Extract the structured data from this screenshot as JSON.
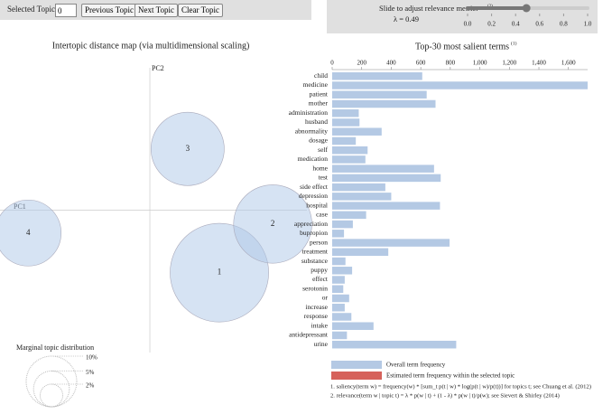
{
  "controls": {
    "selected_label": "Selected Topic:",
    "selected_value": "0",
    "buttons": [
      "Previous Topic",
      "Next Topic",
      "Clear Topic"
    ],
    "slider_label": "Slide to adjust relevance metric:",
    "slider_note": "(2)",
    "lambda_label": "λ = 0.49",
    "lambda": 0.49,
    "slider_lim": [
      0,
      1
    ],
    "slider_ticks": [
      {
        "value": 0,
        "label": "0.0"
      },
      0.2,
      0.4,
      0.6,
      0.8,
      {
        "value": 1,
        "label": "1.0"
      }
    ]
  },
  "chart_data": [
    {
      "type": "bubble",
      "title": "Intertopic distance map (via multidimensional scaling)",
      "xlabel": "PC1",
      "ylabel": "PC2",
      "categories": [
        "1",
        "2",
        "3",
        "4"
      ],
      "x": [
        0.116,
        0.205,
        0.063,
        -0.203
      ],
      "y": [
        -0.104,
        -0.023,
        0.102,
        -0.038
      ],
      "sizes": [
        38,
        24,
        21,
        17
      ],
      "xlim": [
        -0.25,
        0.262
      ],
      "ylim": [
        -0.237,
        0.237
      ],
      "color": "#aec7e8",
      "size_legend": {
        "title": "Marginal topic distribution",
        "values": [
          2,
          5,
          10
        ],
        "value_labels": [
          "2%",
          "5%",
          "10%"
        ]
      }
    },
    {
      "type": "bar",
      "orientation": "horizontal",
      "title": "Top-30 most salient terms",
      "title_note": "(1)",
      "categories": [
        "child",
        "medicine",
        "patient",
        "mother",
        "administration",
        "husband",
        "abnormality",
        "dosage",
        "self",
        "medication",
        "home",
        "test",
        "side effect",
        "depression",
        "hospital",
        "case",
        "appreciation",
        "bupropion",
        "person",
        "treatment",
        "substance",
        "puppy",
        "effect",
        "serotonin",
        "or",
        "increase",
        "response",
        "intake",
        "antidepressant",
        "urine"
      ],
      "series": [
        {
          "name": "Overall term frequency",
          "color": "#b4c9e4",
          "values": [
            610,
            1730,
            640,
            700,
            180,
            185,
            335,
            160,
            240,
            225,
            690,
            735,
            360,
            400,
            730,
            230,
            140,
            80,
            795,
            380,
            90,
            135,
            85,
            75,
            115,
            85,
            130,
            280,
            100,
            840
          ]
        },
        {
          "name": "Estimated term frequency within the selected topic",
          "color": "#d6625b",
          "values": [
            null,
            null,
            null,
            null,
            null,
            null,
            null,
            null,
            null,
            null,
            null,
            null,
            null,
            null,
            null,
            null,
            null,
            null,
            null,
            null,
            null,
            null,
            null,
            null,
            null,
            null,
            null,
            null,
            null,
            null
          ]
        }
      ],
      "xlim": [
        0,
        1730
      ],
      "xticks": [
        0,
        200,
        400,
        600,
        800,
        {
          "value": 1000,
          "label": "1,000"
        },
        {
          "value": 1200,
          "label": "1,200"
        },
        {
          "value": 1400,
          "label": "1,400"
        },
        {
          "value": 1600,
          "label": "1,600"
        }
      ],
      "notes": [
        "1. saliency(term w) = frequency(w) * [sum_t p(t | w) * log(p(t | w)/p(t))] for topics t; see Chuang et al. (2012)",
        "2. relevance(term w | topic t) = λ * p(w | t) + (1 - λ) * p(w | t)/p(w); see Sievert & Shirley (2014)"
      ]
    }
  ]
}
